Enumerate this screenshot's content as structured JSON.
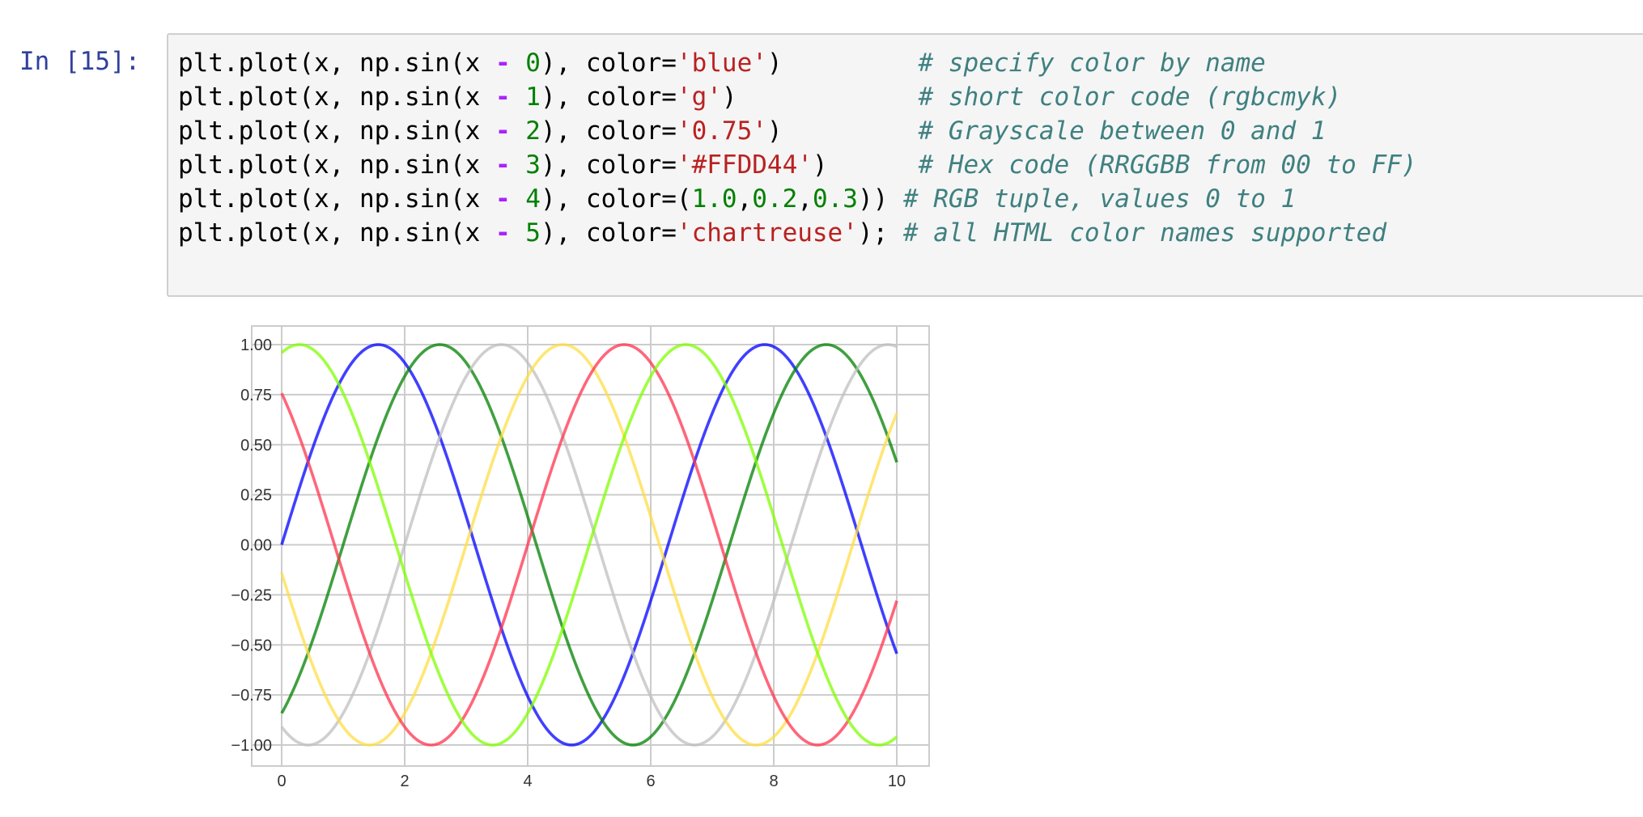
{
  "cell": {
    "prompt": "In [15]:",
    "lines": [
      {
        "pre": "plt.plot(x, np.sin(x ",
        "op": "-",
        "num": " 0",
        "mid": "), color=",
        "val": [
          {
            "s": "'blue'"
          }
        ],
        "post": ")         ",
        "comment": "# specify color by name"
      },
      {
        "pre": "plt.plot(x, np.sin(x ",
        "op": "-",
        "num": " 1",
        "mid": "), color=",
        "val": [
          {
            "s": "'g'"
          }
        ],
        "post": ")            ",
        "comment": "# short color code (rgbcmyk)"
      },
      {
        "pre": "plt.plot(x, np.sin(x ",
        "op": "-",
        "num": " 2",
        "mid": "), color=",
        "val": [
          {
            "s": "'0.75'"
          }
        ],
        "post": ")         ",
        "comment": "# Grayscale between 0 and 1"
      },
      {
        "pre": "plt.plot(x, np.sin(x ",
        "op": "-",
        "num": " 3",
        "mid": "), color=",
        "val": [
          {
            "s": "'#FFDD44'"
          }
        ],
        "post": ")      ",
        "comment": "# Hex code (RRGGBB from 00 to FF)"
      },
      {
        "pre": "plt.plot(x, np.sin(x ",
        "op": "-",
        "num": " 4",
        "mid": "), color=",
        "val": [
          {
            "p": "("
          },
          {
            "n": "1.0"
          },
          {
            "p": ","
          },
          {
            "n": "0.2"
          },
          {
            "p": ","
          },
          {
            "n": "0.3"
          },
          {
            "p": ")"
          }
        ],
        "post": ") ",
        "comment": "# RGB tuple, values 0 to 1"
      },
      {
        "pre": "plt.plot(x, np.sin(x ",
        "op": "-",
        "num": " 5",
        "mid": "), color=",
        "val": [
          {
            "s": "'chartreuse'"
          }
        ],
        "post": "); ",
        "comment": "# all HTML color names supported"
      }
    ]
  },
  "chart_data": {
    "type": "line",
    "title": "",
    "xlabel": "",
    "ylabel": "",
    "xlim": [
      0,
      10
    ],
    "ylim": [
      -1.0,
      1.0
    ],
    "xticks": [
      "0",
      "2",
      "4",
      "6",
      "8",
      "10"
    ],
    "yticks": [
      "1.00",
      "0.75",
      "0.50",
      "0.25",
      "0.00",
      "−0.25",
      "−0.50",
      "−0.75",
      "−1.00"
    ],
    "grid": true,
    "series": [
      {
        "function": "sin(x - 0)",
        "shift": 0,
        "color": "#0000ff"
      },
      {
        "function": "sin(x - 1)",
        "shift": 1,
        "color": "#008000"
      },
      {
        "function": "sin(x - 2)",
        "shift": 2,
        "color": "#bfbfbf"
      },
      {
        "function": "sin(x - 3)",
        "shift": 3,
        "color": "#ffdd44"
      },
      {
        "function": "sin(x - 4)",
        "shift": 4,
        "color": "#ff334d"
      },
      {
        "function": "sin(x - 5)",
        "shift": 5,
        "color": "#7fff00"
      }
    ]
  }
}
